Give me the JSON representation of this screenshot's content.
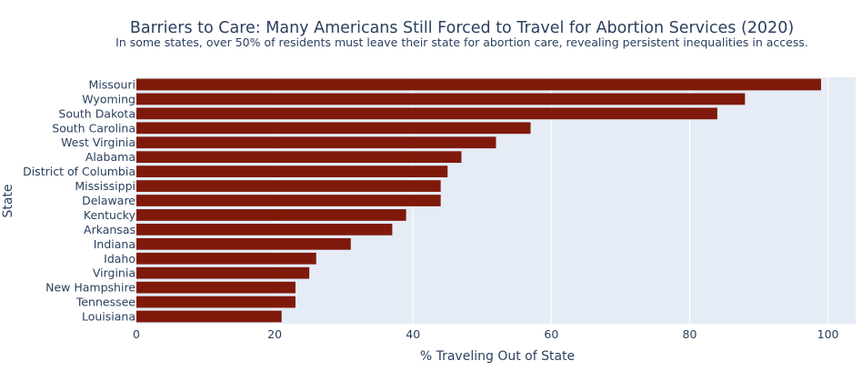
{
  "chart_data": {
    "type": "bar",
    "orientation": "horizontal",
    "title": "Barriers to Care: Many Americans Still Forced to Travel for Abortion Services (2020)",
    "subtitle": "In some states, over 50% of residents must leave their state for abortion care, revealing persistent inequalities in access.",
    "xlabel": "% Traveling Out of State",
    "ylabel": "State",
    "xlim": [
      0,
      104
    ],
    "xticks": [
      0,
      20,
      40,
      60,
      80,
      100
    ],
    "grid": true,
    "legend": "none",
    "bar_color": "#7f1a0b",
    "plot_bg": "#e5ecf6",
    "categories": [
      "Missouri",
      "Wyoming",
      "South Dakota",
      "South Carolina",
      "West Virginia",
      "Alabama",
      "District of Columbia",
      "Mississippi",
      "Delaware",
      "Kentucky",
      "Arkansas",
      "Indiana",
      "Idaho",
      "Virginia",
      "New Hampshire",
      "Tennessee",
      "Louisiana"
    ],
    "values": [
      99,
      88,
      84,
      57,
      52,
      47,
      45,
      44,
      44,
      39,
      37,
      31,
      26,
      25,
      23,
      23,
      21
    ]
  }
}
